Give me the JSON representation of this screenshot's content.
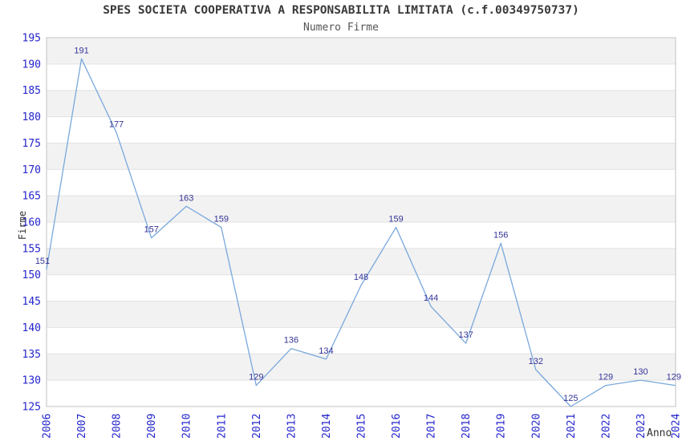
{
  "chart_data": {
    "type": "line",
    "title": "SPES SOCIETA COOPERATIVA A RESPONSABILITA LIMITATA (c.f.00349750737)",
    "subtitle": "Numero Firme",
    "xlabel": "Anno",
    "ylabel": "Firme",
    "categories": [
      "2006",
      "2007",
      "2008",
      "2009",
      "2010",
      "2011",
      "2012",
      "2013",
      "2014",
      "2015",
      "2016",
      "2017",
      "2018",
      "2019",
      "2020",
      "2021",
      "2022",
      "2023",
      "2024"
    ],
    "values": [
      151,
      191,
      177,
      157,
      163,
      159,
      129,
      136,
      134,
      148,
      159,
      144,
      137,
      156,
      132,
      125,
      129,
      130,
      129
    ],
    "ylim": [
      125,
      195
    ],
    "ytick_step": 5,
    "grid": true,
    "legend": "none",
    "band_style": "alternating horizontal bands, gray topmost",
    "colors": {
      "line": "#79a8dc",
      "tick_label": "#2424cc",
      "point_label": "#333399",
      "band_gray": "#f2f2f2",
      "band_white": "#ffffff",
      "gridline": "#e2e2e2",
      "plot_border": "#cccccc",
      "title": "#3a3a3a",
      "subtitle": "#555555",
      "axis_title": "#333333"
    }
  }
}
